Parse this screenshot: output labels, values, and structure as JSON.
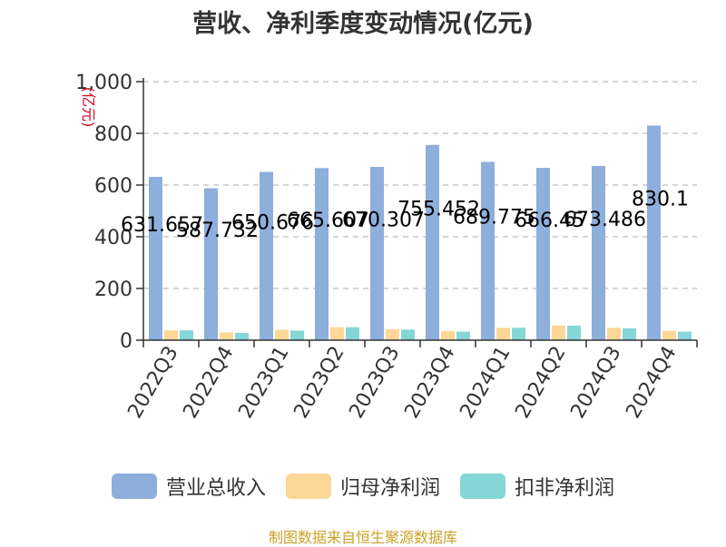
{
  "chart_data": {
    "type": "bar",
    "title": "营收、净利季度变动情况(亿元)",
    "ylabel": "(亿元)",
    "ylim": [
      0,
      1000
    ],
    "yticks": [
      "0",
      "200",
      "400",
      "600",
      "800",
      "1,000"
    ],
    "grid": true,
    "categories": [
      "2022Q3",
      "2022Q4",
      "2023Q1",
      "2023Q2",
      "2023Q3",
      "2023Q4",
      "2024Q1",
      "2024Q2",
      "2024Q3",
      "2024Q4"
    ],
    "series": [
      {
        "name": "营业总收入",
        "color": "#8eaedc",
        "values": [
          631.657,
          587.732,
          650.676,
          665.607,
          670.307,
          755.452,
          689.775,
          666.45,
          673.486,
          830.1
        ],
        "labels": [
          "631.657",
          "587.732",
          "650.676",
          "665.607",
          "670.307",
          "755.452",
          "689.775",
          "666.45",
          "673.486",
          "830.1"
        ]
      },
      {
        "name": "归母净利润",
        "color": "#fdd796",
        "values": [
          38,
          30,
          40,
          50,
          42,
          35,
          48,
          57,
          48,
          36
        ]
      },
      {
        "name": "扣非净利润",
        "color": "#85d6d6",
        "values": [
          38,
          28,
          37,
          50,
          41,
          33,
          48,
          56,
          46,
          33
        ]
      }
    ],
    "legend_position": "bottom"
  },
  "source_note": "制图数据来自恒生聚源数据库"
}
